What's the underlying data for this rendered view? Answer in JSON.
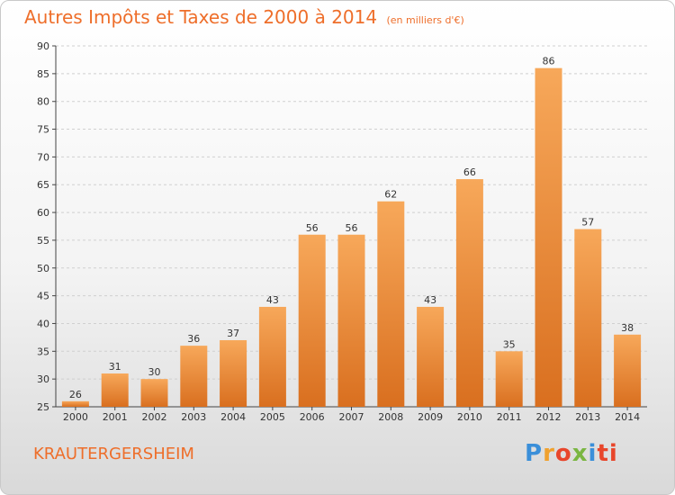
{
  "title": "Autres Impôts et Taxes de 2000 à 2014",
  "subtitle": "(en milliers d'€)",
  "commune": "KRAUTERGERSHEIM",
  "logo": "Proxiti",
  "colors": {
    "accent": "#ee6e2a",
    "bar_top": "#f7a85a",
    "bar_bottom": "#d96f1f",
    "axis": "#444444",
    "grid": "#d0d0d0"
  },
  "chart_data": {
    "type": "bar",
    "title": "Autres Impôts et Taxes de 2000 à 2014",
    "subtitle": "(en milliers d'€)",
    "xlabel": "",
    "ylabel": "",
    "categories": [
      "2000",
      "2001",
      "2002",
      "2003",
      "2004",
      "2005",
      "2006",
      "2007",
      "2008",
      "2009",
      "2010",
      "2011",
      "2012",
      "2013",
      "2014"
    ],
    "values": [
      26,
      31,
      30,
      36,
      37,
      43,
      56,
      56,
      62,
      43,
      66,
      35,
      86,
      57,
      38
    ],
    "ylim": [
      25,
      90
    ],
    "yticks": [
      25,
      30,
      35,
      40,
      45,
      50,
      55,
      60,
      65,
      70,
      75,
      80,
      85,
      90
    ],
    "grid": "horizontal-dashed",
    "legend": "none"
  }
}
